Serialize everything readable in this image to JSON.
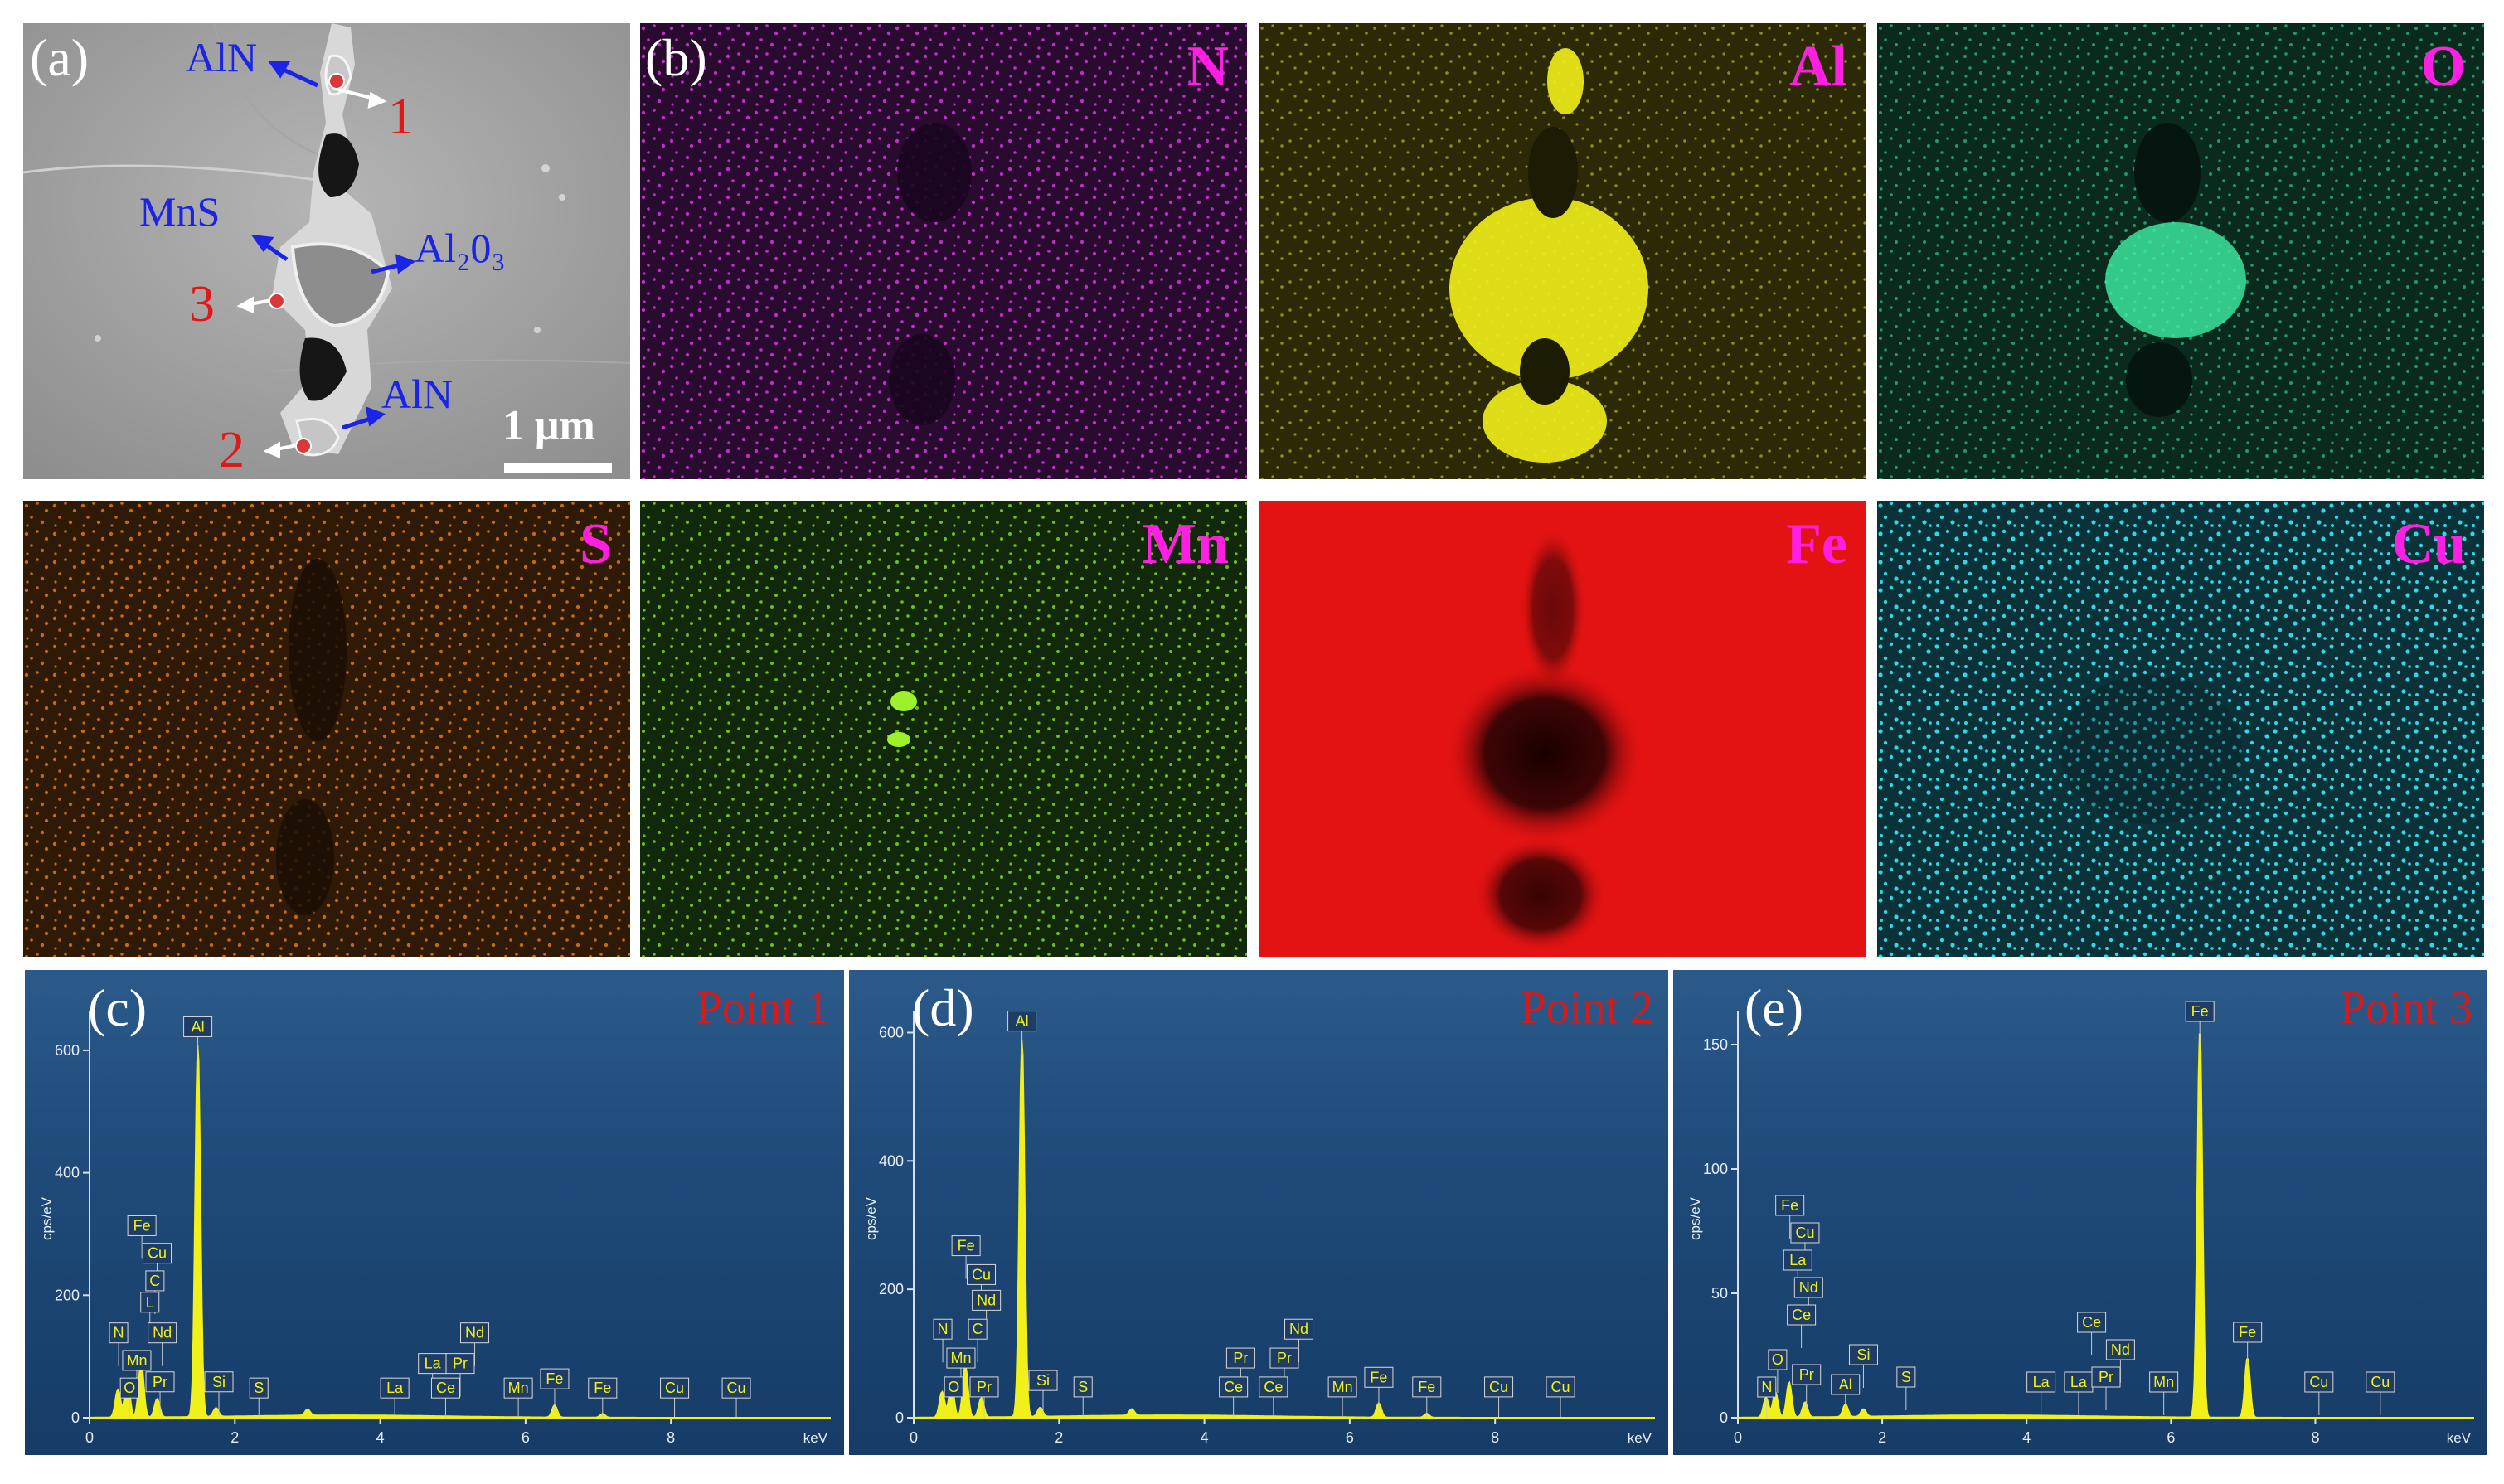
{
  "panel_a": {
    "label": "(a)",
    "annotations": {
      "aln_top": "AlN",
      "mns": "MnS",
      "al2o3": "Al₂0₃",
      "aln_bottom": "AlN",
      "point1": "1",
      "point2": "2",
      "point3": "3",
      "scale": "1 μm"
    }
  },
  "panel_b": {
    "label": "(b)"
  },
  "maps": [
    {
      "element": "N",
      "color": "#c02ec9"
    },
    {
      "element": "Al",
      "color": "#f2f01a"
    },
    {
      "element": "O",
      "color": "#1fd68a"
    },
    {
      "element": "S",
      "color": "#e07a10"
    },
    {
      "element": "Mn",
      "color": "#7ee01c"
    },
    {
      "element": "Fe",
      "color": "#ff1010"
    },
    {
      "element": "Cu",
      "color": "#2ed8e6"
    }
  ],
  "chart_data": [
    {
      "type": "line",
      "panel_label": "(c)",
      "title": "Point 1",
      "ylabel": "cps/eV",
      "xlabel": "keV",
      "xlim": [
        0,
        10.2
      ],
      "ylim": [
        0,
        650
      ],
      "x_ticks": [
        0,
        2,
        4,
        6,
        8
      ],
      "y_ticks": [
        0,
        200,
        400,
        600
      ],
      "peaks": [
        {
          "x": 0.39,
          "y": 45
        },
        {
          "x": 0.52,
          "y": 60
        },
        {
          "x": 0.71,
          "y": 90
        },
        {
          "x": 0.93,
          "y": 30
        },
        {
          "x": 1.49,
          "y": 610
        },
        {
          "x": 1.74,
          "y": 14
        },
        {
          "x": 3.0,
          "y": 10
        },
        {
          "x": 6.4,
          "y": 20
        },
        {
          "x": 7.06,
          "y": 6
        }
      ],
      "element_labels": [
        {
          "text": "Fe",
          "x": 0.72,
          "y": 300
        },
        {
          "text": "Cu",
          "x": 0.93,
          "y": 255
        },
        {
          "text": "C",
          "x": 0.9,
          "y": 210
        },
        {
          "text": "L",
          "x": 0.83,
          "y": 175
        },
        {
          "text": "Nd",
          "x": 1.0,
          "y": 125
        },
        {
          "text": "N",
          "x": 0.4,
          "y": 125
        },
        {
          "text": "Mn",
          "x": 0.65,
          "y": 80
        },
        {
          "text": "O",
          "x": 0.55,
          "y": 35
        },
        {
          "text": "Pr",
          "x": 0.97,
          "y": 45
        },
        {
          "text": "Al",
          "x": 1.49,
          "y": 625
        },
        {
          "text": "Si",
          "x": 1.78,
          "y": 45
        },
        {
          "text": "S",
          "x": 2.33,
          "y": 35
        },
        {
          "text": "La",
          "x": 4.2,
          "y": 35
        },
        {
          "text": "La",
          "x": 4.72,
          "y": 75
        },
        {
          "text": "Pr",
          "x": 5.1,
          "y": 75
        },
        {
          "text": "Nd",
          "x": 5.3,
          "y": 125
        },
        {
          "text": "Ce",
          "x": 4.9,
          "y": 35
        },
        {
          "text": "Mn",
          "x": 5.9,
          "y": 35
        },
        {
          "text": "Fe",
          "x": 6.4,
          "y": 50
        },
        {
          "text": "Fe",
          "x": 7.06,
          "y": 35
        },
        {
          "text": "Cu",
          "x": 8.05,
          "y": 35
        },
        {
          "text": "Cu",
          "x": 8.9,
          "y": 35
        }
      ]
    },
    {
      "type": "line",
      "panel_label": "(d)",
      "title": "Point 2",
      "ylabel": "cps/eV",
      "xlabel": "keV",
      "xlim": [
        0,
        10.2
      ],
      "ylim": [
        0,
        620
      ],
      "x_ticks": [
        0,
        2,
        4,
        6,
        8
      ],
      "y_ticks": [
        0,
        200,
        400,
        600
      ],
      "peaks": [
        {
          "x": 0.39,
          "y": 40
        },
        {
          "x": 0.52,
          "y": 50
        },
        {
          "x": 0.71,
          "y": 80
        },
        {
          "x": 0.93,
          "y": 30
        },
        {
          "x": 1.49,
          "y": 590
        },
        {
          "x": 1.74,
          "y": 14
        },
        {
          "x": 3.0,
          "y": 10
        },
        {
          "x": 6.4,
          "y": 22
        },
        {
          "x": 7.06,
          "y": 6
        }
      ],
      "element_labels": [
        {
          "text": "Fe",
          "x": 0.72,
          "y": 255
        },
        {
          "text": "Cu",
          "x": 0.93,
          "y": 210
        },
        {
          "text": "Nd",
          "x": 1.0,
          "y": 170
        },
        {
          "text": "C",
          "x": 0.88,
          "y": 125
        },
        {
          "text": "N",
          "x": 0.4,
          "y": 125
        },
        {
          "text": "Mn",
          "x": 0.65,
          "y": 80
        },
        {
          "text": "O",
          "x": 0.55,
          "y": 35
        },
        {
          "text": "Pr",
          "x": 0.97,
          "y": 35
        },
        {
          "text": "Al",
          "x": 1.49,
          "y": 605
        },
        {
          "text": "Si",
          "x": 1.78,
          "y": 45
        },
        {
          "text": "S",
          "x": 2.33,
          "y": 35
        },
        {
          "text": "Pr",
          "x": 4.5,
          "y": 80
        },
        {
          "text": "Pr",
          "x": 5.1,
          "y": 80
        },
        {
          "text": "Nd",
          "x": 5.3,
          "y": 125
        },
        {
          "text": "Ce",
          "x": 4.4,
          "y": 35
        },
        {
          "text": "Ce",
          "x": 4.95,
          "y": 35
        },
        {
          "text": "Mn",
          "x": 5.9,
          "y": 35
        },
        {
          "text": "Fe",
          "x": 6.4,
          "y": 50
        },
        {
          "text": "Fe",
          "x": 7.06,
          "y": 35
        },
        {
          "text": "Cu",
          "x": 8.05,
          "y": 35
        },
        {
          "text": "Cu",
          "x": 8.9,
          "y": 35
        }
      ]
    },
    {
      "type": "line",
      "panel_label": "(e)",
      "title": "Point 3",
      "ylabel": "cps/eV",
      "xlabel": "keV",
      "xlim": [
        0,
        10.2
      ],
      "ylim": [
        0,
        160
      ],
      "x_ticks": [
        0,
        2,
        4,
        6,
        8
      ],
      "y_ticks": [
        0,
        50,
        100,
        150
      ],
      "peaks": [
        {
          "x": 0.39,
          "y": 8
        },
        {
          "x": 0.52,
          "y": 10
        },
        {
          "x": 0.71,
          "y": 14
        },
        {
          "x": 0.93,
          "y": 6
        },
        {
          "x": 1.49,
          "y": 5
        },
        {
          "x": 1.74,
          "y": 3
        },
        {
          "x": 6.4,
          "y": 155
        },
        {
          "x": 7.06,
          "y": 24
        }
      ],
      "element_labels": [
        {
          "text": "Fe",
          "x": 0.72,
          "y": 82
        },
        {
          "text": "Cu",
          "x": 0.93,
          "y": 71
        },
        {
          "text": "La",
          "x": 0.83,
          "y": 60
        },
        {
          "text": "Nd",
          "x": 0.98,
          "y": 49
        },
        {
          "text": "Ce",
          "x": 0.88,
          "y": 38
        },
        {
          "text": "O",
          "x": 0.55,
          "y": 20
        },
        {
          "text": "Pr",
          "x": 0.95,
          "y": 14
        },
        {
          "text": "N",
          "x": 0.4,
          "y": 9
        },
        {
          "text": "Al",
          "x": 1.49,
          "y": 10
        },
        {
          "text": "Si",
          "x": 1.74,
          "y": 22
        },
        {
          "text": "S",
          "x": 2.33,
          "y": 13
        },
        {
          "text": "La",
          "x": 4.2,
          "y": 11
        },
        {
          "text": "La",
          "x": 4.72,
          "y": 11
        },
        {
          "text": "Ce",
          "x": 4.9,
          "y": 35
        },
        {
          "text": "Nd",
          "x": 5.3,
          "y": 24
        },
        {
          "text": "Pr",
          "x": 5.1,
          "y": 13
        },
        {
          "text": "Mn",
          "x": 5.9,
          "y": 11
        },
        {
          "text": "Fe",
          "x": 6.4,
          "y": 160
        },
        {
          "text": "Fe",
          "x": 7.06,
          "y": 31
        },
        {
          "text": "Cu",
          "x": 8.05,
          "y": 11
        },
        {
          "text": "Cu",
          "x": 8.9,
          "y": 11
        }
      ]
    }
  ]
}
